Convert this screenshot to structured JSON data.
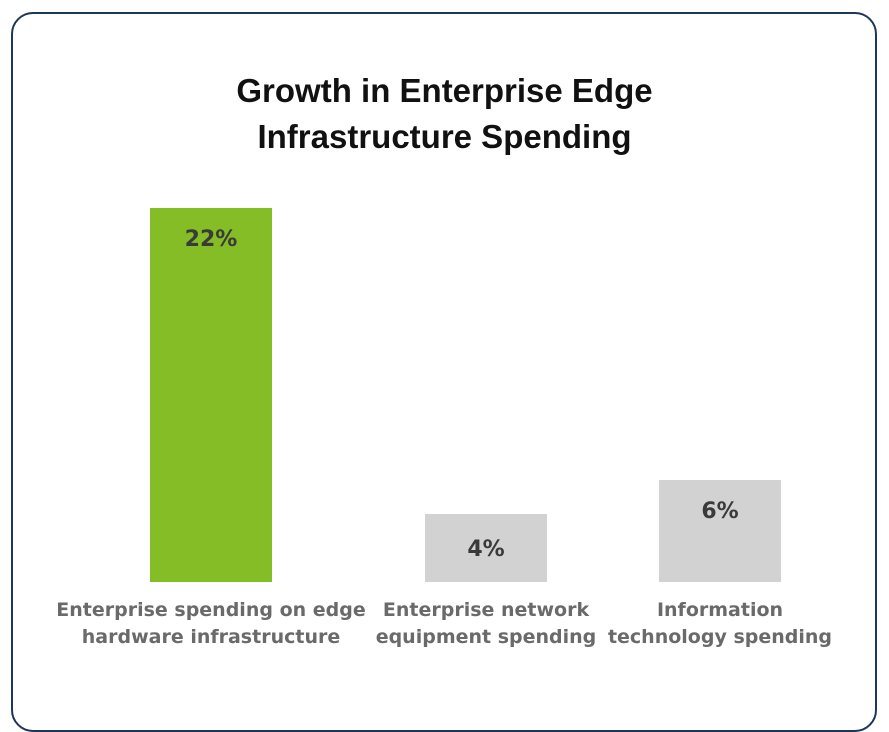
{
  "chart_data": {
    "type": "bar",
    "title_lines": [
      "Growth in Enterprise Edge",
      "Infrastructure Spending"
    ],
    "categories": [
      [
        "Enterprise spending on edge",
        "hardware infrastructure"
      ],
      [
        "Enterprise network",
        "equipment spending"
      ],
      [
        "Information",
        "technology spending"
      ]
    ],
    "values": [
      22,
      4,
      6
    ],
    "value_labels": [
      "22%",
      "4%",
      "6%"
    ],
    "unit": "%",
    "ylim": [
      0,
      22
    ],
    "grid": false,
    "colors": [
      "#84bd26",
      "#d2d2d2",
      "#d2d2d2"
    ],
    "value_label_position": [
      "inside-top",
      "inside-center",
      "inside-top"
    ]
  }
}
